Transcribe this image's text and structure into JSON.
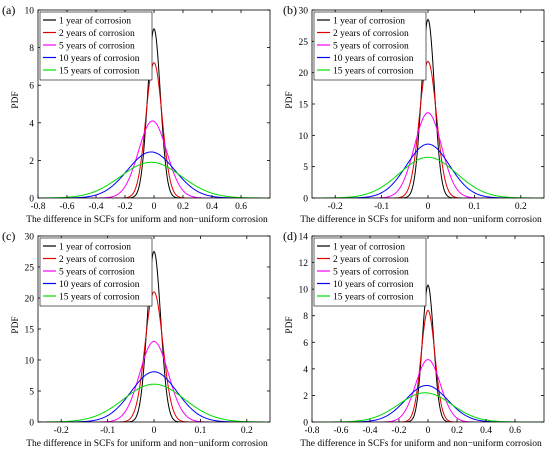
{
  "legend_labels": [
    "1 year of corrosion",
    "2 years of corrosion",
    "5 years of corrosion",
    "10 years of corrosion",
    "15 years of corrosion"
  ],
  "series_colors": [
    "#000000",
    "#e00000",
    "#ff00ff",
    "#0000ff",
    "#00dd00"
  ],
  "chart_data": [
    {
      "panel_label": "(a)",
      "type": "line",
      "xlabel": "The difference in SCFs for uniform and non−uniform corrosion",
      "ylabel": "PDF",
      "xlim": [
        -0.8,
        0.8
      ],
      "ylim": [
        0,
        10
      ],
      "xticks": [
        -0.8,
        -0.6,
        -0.4,
        -0.2,
        0,
        0.2,
        0.4,
        0.6
      ],
      "yticks": [
        0,
        2,
        4,
        6,
        8,
        10
      ],
      "xtick_labels": [
        "-0.8",
        "-0.6",
        "-0.4",
        "-0.2",
        "0",
        "0.2",
        "0.4",
        "0.6"
      ],
      "ytick_labels": [
        "0",
        "2",
        "4",
        "6",
        "8",
        "10"
      ],
      "grid": false,
      "legend_position": "top-left",
      "series": [
        {
          "name": "1 year of corrosion",
          "distribution": "normal",
          "center": 0.0,
          "peak_pdf": 9.0
        },
        {
          "name": "2 years of corrosion",
          "distribution": "normal",
          "center": 0.0,
          "peak_pdf": 7.2
        },
        {
          "name": "5 years of corrosion",
          "distribution": "normal",
          "center": -0.01,
          "peak_pdf": 4.1
        },
        {
          "name": "10 years of corrosion",
          "distribution": "normal",
          "center": -0.02,
          "peak_pdf": 2.45
        },
        {
          "name": "15 years of corrosion",
          "distribution": "normal",
          "center": -0.02,
          "peak_pdf": 1.9
        }
      ]
    },
    {
      "panel_label": "(b)",
      "type": "line",
      "xlabel": "The difference in SCFs for uniform and non−uniform corrosion",
      "ylabel": "PDF",
      "xlim": [
        -0.25,
        0.25
      ],
      "ylim": [
        0,
        30
      ],
      "xticks": [
        -0.2,
        -0.1,
        0,
        0.1,
        0.2
      ],
      "yticks": [
        0,
        5,
        10,
        15,
        20,
        25,
        30
      ],
      "xtick_labels": [
        "-0.2",
        "-0.1",
        "0",
        "0.1",
        "0.2"
      ],
      "ytick_labels": [
        "0",
        "5",
        "10",
        "15",
        "20",
        "25",
        "30"
      ],
      "grid": false,
      "legend_position": "top-left",
      "series": [
        {
          "name": "1 year of corrosion",
          "distribution": "normal",
          "center": 0.0,
          "peak_pdf": 28.5
        },
        {
          "name": "2 years of corrosion",
          "distribution": "normal",
          "center": 0.0,
          "peak_pdf": 21.8
        },
        {
          "name": "5 years of corrosion",
          "distribution": "normal",
          "center": 0.0,
          "peak_pdf": 13.6
        },
        {
          "name": "10 years of corrosion",
          "distribution": "normal",
          "center": 0.0,
          "peak_pdf": 8.6
        },
        {
          "name": "15 years of corrosion",
          "distribution": "normal",
          "center": 0.0,
          "peak_pdf": 6.5
        }
      ]
    },
    {
      "panel_label": "(c)",
      "type": "line",
      "xlabel": "The difference in SCFs for uniform and non−uniform corrosion",
      "ylabel": "PDF",
      "xlim": [
        -0.25,
        0.25
      ],
      "ylim": [
        0,
        30
      ],
      "xticks": [
        -0.2,
        -0.1,
        0,
        0.1,
        0.2
      ],
      "yticks": [
        0,
        5,
        10,
        15,
        20,
        25,
        30
      ],
      "xtick_labels": [
        "-0.2",
        "-0.1",
        "0",
        "0.1",
        "0.2"
      ],
      "ytick_labels": [
        "0",
        "5",
        "10",
        "15",
        "20",
        "25",
        "30"
      ],
      "grid": false,
      "legend_position": "top-left",
      "series": [
        {
          "name": "1 year of corrosion",
          "distribution": "normal",
          "center": 0.0,
          "peak_pdf": 27.5
        },
        {
          "name": "2 years of corrosion",
          "distribution": "normal",
          "center": 0.0,
          "peak_pdf": 21.0
        },
        {
          "name": "5 years of corrosion",
          "distribution": "normal",
          "center": 0.0,
          "peak_pdf": 13.0
        },
        {
          "name": "10 years of corrosion",
          "distribution": "normal",
          "center": 0.0,
          "peak_pdf": 8.1
        },
        {
          "name": "15 years of corrosion",
          "distribution": "normal",
          "center": 0.0,
          "peak_pdf": 6.1
        }
      ]
    },
    {
      "panel_label": "(d)",
      "type": "line",
      "xlabel": "The difference in SCFs for uniform and non−uniform corrosion",
      "ylabel": "PDF",
      "xlim": [
        -0.8,
        0.8
      ],
      "ylim": [
        0,
        14
      ],
      "xticks": [
        -0.8,
        -0.6,
        -0.4,
        -0.2,
        0,
        0.2,
        0.4,
        0.6
      ],
      "yticks": [
        0,
        2,
        4,
        6,
        8,
        10,
        12,
        14
      ],
      "xtick_labels": [
        "-0.8",
        "-0.6",
        "-0.4",
        "-0.2",
        "0",
        "0.2",
        "0.4",
        "0.6"
      ],
      "ytick_labels": [
        "0",
        "2",
        "4",
        "6",
        "8",
        "10",
        "12",
        "14"
      ],
      "grid": false,
      "legend_position": "top-left",
      "series": [
        {
          "name": "1 year of corrosion",
          "distribution": "normal",
          "center": 0.0,
          "peak_pdf": 10.3
        },
        {
          "name": "2 years of corrosion",
          "distribution": "normal",
          "center": 0.0,
          "peak_pdf": 8.4
        },
        {
          "name": "5 years of corrosion",
          "distribution": "normal",
          "center": 0.0,
          "peak_pdf": 4.7
        },
        {
          "name": "10 years of corrosion",
          "distribution": "normal",
          "center": -0.01,
          "peak_pdf": 2.75
        },
        {
          "name": "15 years of corrosion",
          "distribution": "normal",
          "center": -0.02,
          "peak_pdf": 2.2
        }
      ]
    }
  ]
}
